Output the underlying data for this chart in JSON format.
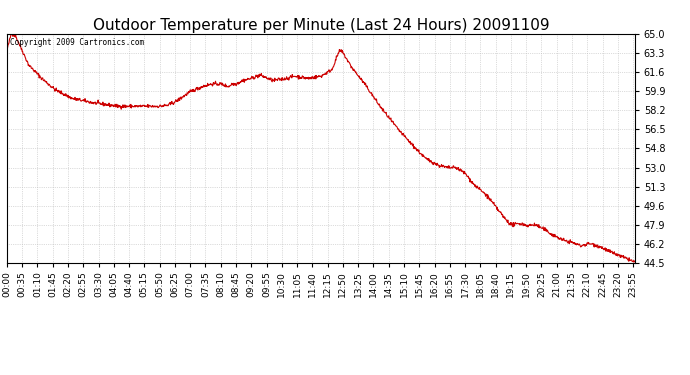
{
  "title": "Outdoor Temperature per Minute (Last 24 Hours) 20091109",
  "copyright_text": "Copyright 2009 Cartronics.com",
  "line_color": "#cc0000",
  "bg_color": "#ffffff",
  "plot_bg_color": "#ffffff",
  "grid_color": "#bbbbbb",
  "ylim": [
    44.5,
    65.0
  ],
  "yticks": [
    44.5,
    46.2,
    47.9,
    49.6,
    51.3,
    53.0,
    54.8,
    56.5,
    58.2,
    59.9,
    61.6,
    63.3,
    65.0
  ],
  "title_fontsize": 11,
  "tick_fontsize": 7,
  "xlabel_fontsize": 6.5,
  "xtick_step": 35,
  "total_minutes": 1440,
  "keypoints_x": [
    0,
    10,
    20,
    50,
    80,
    110,
    150,
    200,
    255,
    300,
    350,
    370,
    390,
    420,
    450,
    470,
    490,
    505,
    510,
    515,
    525,
    540,
    560,
    580,
    610,
    640,
    660,
    690,
    720,
    745,
    760,
    765,
    770,
    790,
    820,
    855,
    895,
    930,
    960,
    990,
    1010,
    1030,
    1050,
    1070,
    1100,
    1120,
    1140,
    1155,
    1165,
    1175,
    1185,
    1195,
    1210,
    1230,
    1250,
    1275,
    1295,
    1315,
    1335,
    1355,
    1380,
    1410,
    1430,
    1439
  ],
  "keypoints_y": [
    63.5,
    65.0,
    64.8,
    62.2,
    61.0,
    60.0,
    59.2,
    58.8,
    58.5,
    58.5,
    58.5,
    58.6,
    59.0,
    59.8,
    60.3,
    60.5,
    60.5,
    60.3,
    60.3,
    60.5,
    60.5,
    60.8,
    61.0,
    61.3,
    60.8,
    61.0,
    61.2,
    61.0,
    61.2,
    61.8,
    63.3,
    63.5,
    63.3,
    62.0,
    60.5,
    58.5,
    56.5,
    55.0,
    53.8,
    53.2,
    53.0,
    53.0,
    52.5,
    51.5,
    50.5,
    49.5,
    48.5,
    47.9,
    47.9,
    48.0,
    47.9,
    47.8,
    47.9,
    47.5,
    47.0,
    46.5,
    46.3,
    46.0,
    46.2,
    46.0,
    45.5,
    45.0,
    44.7,
    44.5
  ]
}
